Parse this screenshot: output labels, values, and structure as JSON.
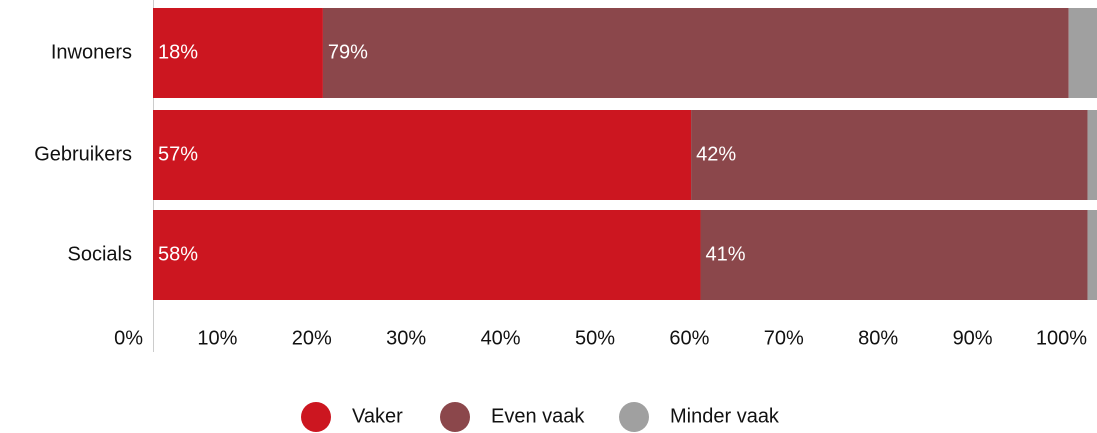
{
  "chart_data": {
    "type": "stacked-bar-horizontal",
    "categories": [
      "Inwoners",
      "Gebruikers",
      "Socials"
    ],
    "series": [
      {
        "name": "Vaker",
        "color": "#cc1620",
        "values": [
          18,
          57,
          58
        ],
        "value_labels": [
          "18%",
          "57%",
          "58%"
        ]
      },
      {
        "name": "Even vaak",
        "color": "#8b474b",
        "values": [
          79,
          42,
          41
        ],
        "value_labels": [
          "79%",
          "42%",
          "41%"
        ]
      },
      {
        "name": "Minder vaak",
        "color": "#a0a0a0",
        "values": [
          3,
          1,
          1
        ]
      }
    ],
    "xlim": [
      0,
      100
    ],
    "xticks": [
      {
        "value": 0,
        "label": "0%"
      },
      {
        "value": 10,
        "label": "10%"
      },
      {
        "value": 20,
        "label": "20%"
      },
      {
        "value": 30,
        "label": "30%"
      },
      {
        "value": 40,
        "label": "40%"
      },
      {
        "value": 50,
        "label": "50%"
      },
      {
        "value": 60,
        "label": "60%"
      },
      {
        "value": 70,
        "label": "70%"
      },
      {
        "value": 80,
        "label": "80%"
      },
      {
        "value": 90,
        "label": "90%"
      },
      {
        "value": 100,
        "label": "100%"
      }
    ],
    "legend": "bottom"
  }
}
